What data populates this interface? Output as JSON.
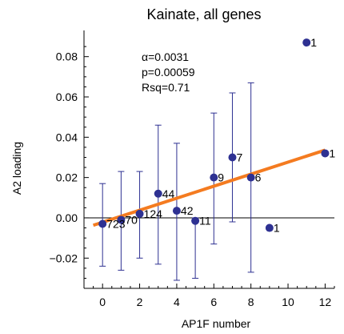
{
  "chart_data": {
    "type": "scatter",
    "title": "Kainate, all genes",
    "xlabel": "AP1F number",
    "ylabel": "A2 loading",
    "xlim": [
      -1,
      12.5
    ],
    "ylim": [
      -0.035,
      0.093
    ],
    "xticks": [
      0,
      2,
      4,
      6,
      8,
      10,
      12
    ],
    "xtick_labels": [
      "0",
      "2",
      "4",
      "6",
      "8",
      "10",
      "12"
    ],
    "yticks": [
      -0.02,
      0,
      0.02,
      0.04,
      0.06,
      0.08
    ],
    "ytick_labels": [
      "−0.02",
      "0.00",
      "0.02",
      "0.04",
      "0.06",
      "0.08"
    ],
    "annotations": [
      "α=0.0031",
      "p=0.00059",
      "Rsq=0.71"
    ],
    "grid": false,
    "points": [
      {
        "x": 0,
        "y": -0.003,
        "err_lo": -0.024,
        "err_hi": 0.017,
        "label": "723"
      },
      {
        "x": 1,
        "y": -0.001,
        "err_lo": -0.026,
        "err_hi": 0.023,
        "label": "70"
      },
      {
        "x": 2,
        "y": 0.002,
        "err_lo": -0.02,
        "err_hi": 0.023,
        "label": "124"
      },
      {
        "x": 3,
        "y": 0.012,
        "err_lo": -0.023,
        "err_hi": 0.046,
        "label": "44"
      },
      {
        "x": 4,
        "y": 0.0035,
        "err_lo": -0.031,
        "err_hi": 0.037,
        "label": "42"
      },
      {
        "x": 5,
        "y": -0.0015,
        "err_lo": -0.03,
        "err_hi": 0.0,
        "label": "11"
      },
      {
        "x": 6,
        "y": 0.02,
        "err_lo": -0.013,
        "err_hi": 0.052,
        "label": "9"
      },
      {
        "x": 7,
        "y": 0.03,
        "err_lo": -0.002,
        "err_hi": 0.062,
        "label": "7"
      },
      {
        "x": 8,
        "y": 0.02,
        "err_lo": -0.027,
        "err_hi": 0.067,
        "label": "6"
      },
      {
        "x": 9,
        "y": -0.005,
        "err_lo": null,
        "err_hi": null,
        "label": "1"
      },
      {
        "x": 11,
        "y": 0.087,
        "err_lo": null,
        "err_hi": null,
        "label": "1"
      },
      {
        "x": 12,
        "y": 0.032,
        "err_lo": null,
        "err_hi": null,
        "label": "1"
      }
    ],
    "fit_line": {
      "x": [
        -0.5,
        12
      ],
      "y": [
        -0.0037,
        0.0336
      ]
    },
    "colors": {
      "points": "#2e3192",
      "error_bars": "#2e3192",
      "fit_line": "#f47b20",
      "axes": "#000000"
    }
  }
}
